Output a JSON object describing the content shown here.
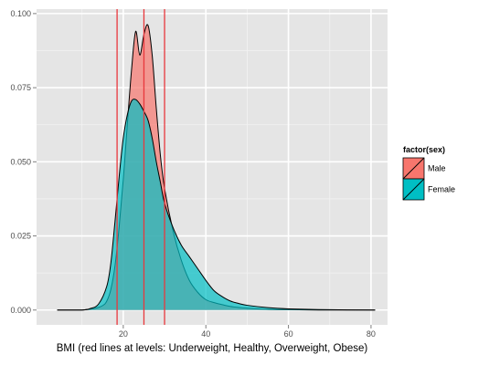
{
  "chart_data": {
    "type": "area",
    "title": "",
    "xlabel": "BMI (red lines at levels: Underweight, Healthy, Overweight, Obese)",
    "ylabel": "",
    "xlim": [
      -1,
      84
    ],
    "ylim": [
      -0.005,
      0.1015
    ],
    "grid": true,
    "legend_position": "right",
    "x_ticks": [
      {
        "value": 20,
        "label": "20"
      },
      {
        "value": 40,
        "label": "40"
      },
      {
        "value": 60,
        "label": "60"
      },
      {
        "value": 80,
        "label": "80"
      }
    ],
    "y_ticks": [
      {
        "value": 0,
        "label": "0.000"
      },
      {
        "value": 0.025,
        "label": "0.025"
      },
      {
        "value": 0.05,
        "label": "0.050"
      },
      {
        "value": 0.075,
        "label": "0.075"
      },
      {
        "value": 0.1,
        "label": "0.100"
      }
    ],
    "legend": {
      "title": "factor(sex)",
      "entries": [
        {
          "name": "Male",
          "color": "#F8766D"
        },
        {
          "name": "Female",
          "color": "#00BFC4"
        }
      ]
    },
    "reference_lines": [
      18.5,
      25,
      30
    ],
    "reference_line_color": "#E8383D",
    "series": [
      {
        "name": "Male",
        "color": "#F8766D",
        "x": [
          4,
          10,
          13,
          15,
          16,
          17,
          18,
          19,
          20,
          21,
          22,
          23,
          24,
          25,
          26,
          27,
          28,
          29,
          30,
          32,
          34,
          36,
          38,
          40,
          42,
          44,
          46,
          50,
          55,
          60,
          70,
          81
        ],
        "y": [
          0,
          0,
          0.0005,
          0.0015,
          0.003,
          0.007,
          0.015,
          0.028,
          0.044,
          0.063,
          0.081,
          0.094,
          0.086,
          0.093,
          0.096,
          0.086,
          0.068,
          0.052,
          0.041,
          0.027,
          0.017,
          0.01,
          0.006,
          0.0035,
          0.0025,
          0.0018,
          0.0012,
          0.0006,
          0.0002,
          0.0001,
          0,
          0
        ]
      },
      {
        "name": "Female",
        "color": "#00BFC4",
        "x": [
          4,
          10,
          12,
          14,
          16,
          17,
          18,
          19,
          20,
          21,
          22,
          23,
          24,
          25,
          26,
          27,
          28,
          29,
          30,
          32,
          34,
          36,
          38,
          40,
          42,
          44,
          46,
          48,
          50,
          55,
          60,
          70,
          81
        ],
        "y": [
          0,
          0,
          0.0005,
          0.002,
          0.008,
          0.016,
          0.03,
          0.045,
          0.058,
          0.066,
          0.0705,
          0.071,
          0.0695,
          0.067,
          0.064,
          0.058,
          0.05,
          0.043,
          0.036,
          0.028,
          0.022,
          0.018,
          0.014,
          0.01,
          0.0065,
          0.0045,
          0.003,
          0.0022,
          0.0016,
          0.0008,
          0.0004,
          0.0001,
          0
        ]
      }
    ]
  }
}
